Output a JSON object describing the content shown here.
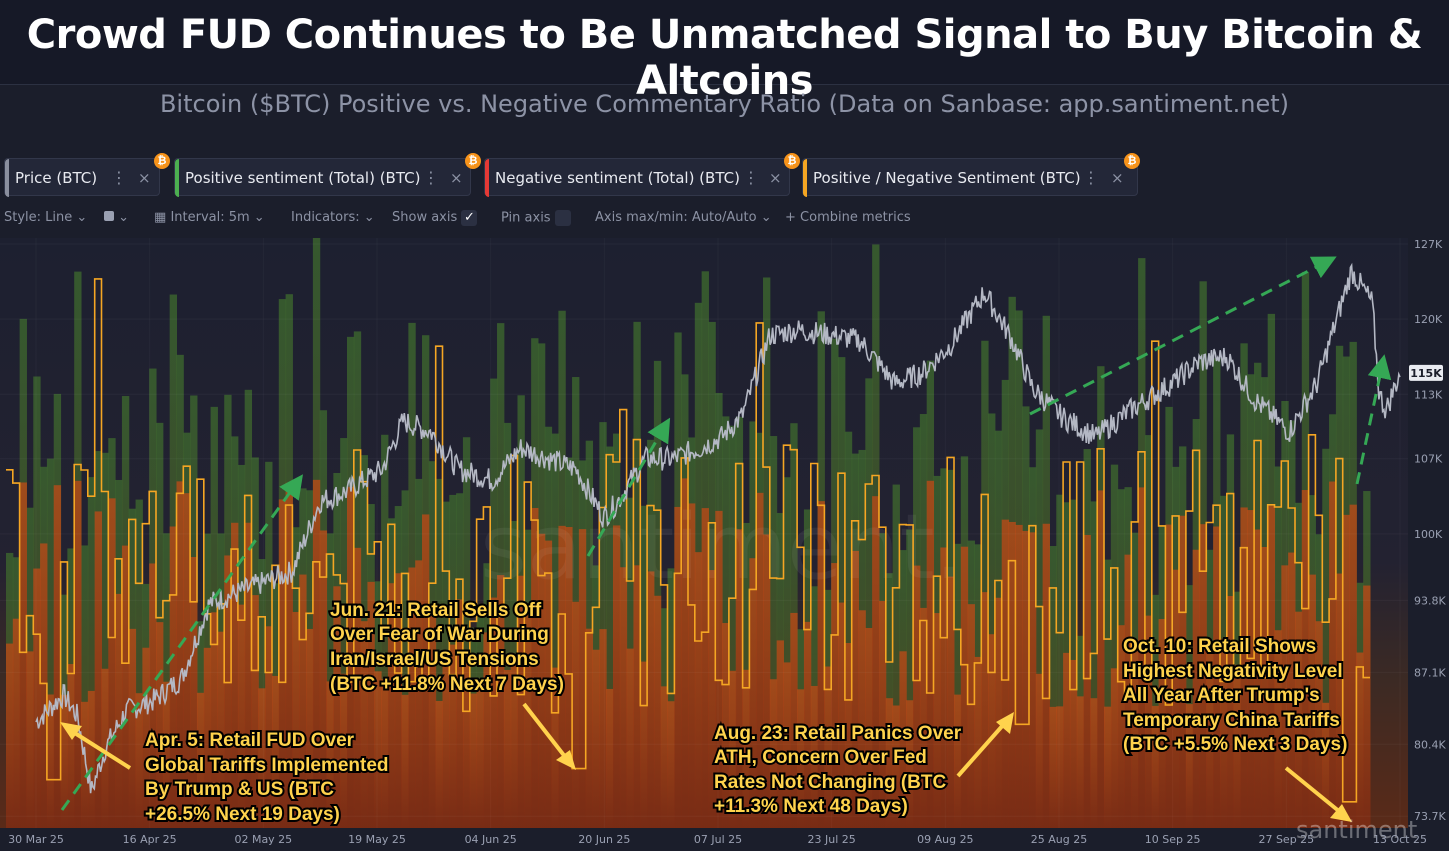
{
  "header": {
    "title": "Crowd FUD Continues to Be Unmatched Signal to Buy Bitcoin & Altcoins",
    "subtitle": "Bitcoin ($BTC) Positive vs. Negative Commentary Ratio (Data on Sanbase: app.santiment.net)"
  },
  "metrics": [
    {
      "label": "Price (BTC)",
      "color": "#8a8f9e"
    },
    {
      "label": "Positive sentiment (Total) (BTC)",
      "color": "#4caf50"
    },
    {
      "label": "Negative sentiment (Total) (BTC)",
      "color": "#e53935"
    },
    {
      "label": "Positive / Negative Sentiment (BTC)",
      "color": "#f5a623"
    }
  ],
  "badge_symbol": "₿",
  "toolbar": {
    "style": "Style: Line",
    "interval": "Interval: 5m",
    "indicators": "Indicators:",
    "show_axis": "Show axis",
    "pin_axis": "Pin axis",
    "axis_minmax": "Axis max/min: Auto/Auto",
    "combine": "Combine metrics"
  },
  "chart_data": {
    "type": "line",
    "title": "Bitcoin ($BTC) Positive vs. Negative Commentary Ratio",
    "x_ticks": [
      "30 Mar 25",
      "16 Apr 25",
      "02 May 25",
      "19 May 25",
      "04 Jun 25",
      "20 Jun 25",
      "07 Jul 25",
      "23 Jul 25",
      "09 Aug 25",
      "25 Aug 25",
      "10 Sep 25",
      "27 Sep 25",
      "13 Oct 25"
    ],
    "y_ticks": [
      "127K",
      "120K",
      "113K",
      "107K",
      "100K",
      "93.8K",
      "87.1K",
      "80.4K",
      "73.7K"
    ],
    "y_tick_values": [
      127000,
      120000,
      113000,
      107000,
      100000,
      93800,
      87100,
      80400,
      73700
    ],
    "ylim": [
      73700,
      127000
    ],
    "current_price_label": "115K",
    "current_price": 115000,
    "series": [
      {
        "name": "Price (BTC)",
        "color": "#b4b8c4",
        "dates": [
          "30 Mar",
          "03 Apr",
          "05 Apr",
          "07 Apr",
          "09 Apr",
          "12 Apr",
          "16 Apr",
          "20 Apr",
          "24 Apr",
          "28 Apr",
          "02 May",
          "06 May",
          "10 May",
          "14 May",
          "19 May",
          "22 May",
          "26 May",
          "30 May",
          "04 Jun",
          "08 Jun",
          "12 Jun",
          "16 Jun",
          "20 Jun",
          "22 Jun",
          "26 Jun",
          "30 Jun",
          "04 Jul",
          "07 Jul",
          "10 Jul",
          "14 Jul",
          "18 Jul",
          "23 Jul",
          "27 Jul",
          "01 Aug",
          "05 Aug",
          "09 Aug",
          "14 Aug",
          "18 Aug",
          "21 Aug",
          "25 Aug",
          "30 Aug",
          "04 Sep",
          "10 Sep",
          "14 Sep",
          "18 Sep",
          "22 Sep",
          "27 Sep",
          "01 Oct",
          "06 Oct",
          "09 Oct",
          "10 Oct",
          "11 Oct",
          "13 Oct"
        ],
        "values": [
          82500,
          85000,
          83000,
          76000,
          80000,
          83500,
          84500,
          86500,
          93500,
          94500,
          95500,
          96500,
          103000,
          104000,
          106000,
          110500,
          109500,
          106000,
          105000,
          108000,
          107000,
          106000,
          101500,
          103000,
          107000,
          107000,
          108000,
          109000,
          111000,
          118500,
          119000,
          118500,
          118000,
          114000,
          115000,
          117500,
          122500,
          118000,
          113500,
          111000,
          109000,
          111500,
          114000,
          116000,
          116500,
          112500,
          109500,
          114000,
          124500,
          121500,
          113000,
          111500,
          115000
        ]
      },
      {
        "name": "Positive / Negative Sentiment (BTC)",
        "color": "#f5a623",
        "dates": [
          "30 Mar",
          "05 Apr",
          "16 Apr",
          "02 May",
          "19 May",
          "20 Jun",
          "07 Jul",
          "23 Jul",
          "09 Aug",
          "23 Aug",
          "25 Aug",
          "10 Sep",
          "27 Sep",
          "10 Oct",
          "13 Oct"
        ],
        "values": [
          2.0,
          0.2,
          2.3,
          2.5,
          1.8,
          0.25,
          1.9,
          1.6,
          1.4,
          0.45,
          1.5,
          1.3,
          1.4,
          0.1,
          1.1
        ]
      }
    ]
  },
  "annotations": {
    "apr": [
      "Apr. 5: Retail FUD Over",
      "Global Tariffs Implemented",
      "By Trump & US (BTC",
      "+26.5% Next 19 Days)"
    ],
    "jun": [
      "Jun. 21: Retail Sells Off",
      "Over Fear of War During",
      "Iran/Israel/US Tensions",
      "(BTC +11.8% Next 7 Days)"
    ],
    "aug": [
      "Aug. 23: Retail Panics Over",
      "ATH, Concern Over Fed",
      "Rates Not Changing (BTC",
      "+11.3% Next 48 Days)"
    ],
    "oct": [
      "Oct. 10: Retail Shows",
      "Highest Negativity Level",
      "All Year After Trump's",
      "Temporary China Tariffs",
      "(BTC +5.5% Next 3 Days)"
    ]
  },
  "watermark": "santiment.",
  "watermark_small": "santiment"
}
